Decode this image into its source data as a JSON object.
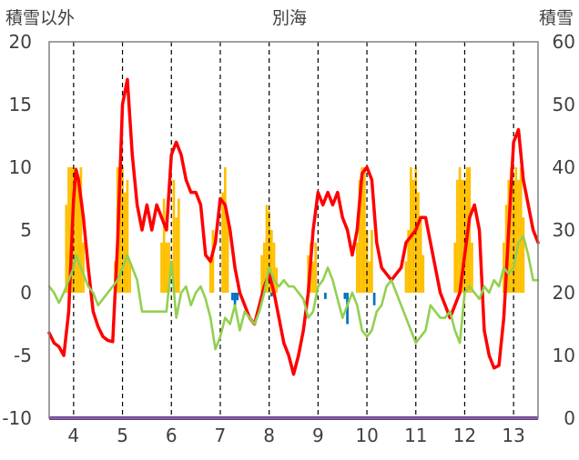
{
  "chart_data": {
    "type": "line",
    "title": "別海",
    "left_axis_label": "積雪以外",
    "right_axis_label": "積雪",
    "left_ylim": [
      -10,
      20
    ],
    "left_yticks": [
      20,
      15,
      10,
      5,
      0,
      -5,
      -10
    ],
    "right_ylim": [
      0,
      60
    ],
    "right_yticks": [
      60,
      50,
      40,
      30,
      20,
      10,
      0
    ],
    "xlim": [
      3.5,
      13.5
    ],
    "xticks": [
      4,
      5,
      6,
      7,
      8,
      9,
      10,
      11,
      12,
      13
    ],
    "grid": {
      "vertical": "dashed",
      "horizontal": "none"
    },
    "colors": {
      "red_line": "#ff0000",
      "green_line": "#92d050",
      "orange_bars": "#ffc000",
      "blue_bars": "#0070c0",
      "baseline": "#7030a0",
      "grid": "#000000",
      "frame": "#808080"
    },
    "series": [
      {
        "axis": "left",
        "style": "line",
        "color": "#ff0000",
        "x": [
          3.5,
          3.6,
          3.7,
          3.8,
          3.9,
          4.0,
          4.05,
          4.1,
          4.2,
          4.3,
          4.4,
          4.5,
          4.6,
          4.7,
          4.8,
          4.9,
          5.0,
          5.1,
          5.2,
          5.3,
          5.4,
          5.5,
          5.6,
          5.7,
          5.8,
          5.9,
          6.0,
          6.1,
          6.2,
          6.3,
          6.4,
          6.5,
          6.6,
          6.7,
          6.8,
          6.9,
          7.0,
          7.1,
          7.2,
          7.3,
          7.4,
          7.5,
          7.6,
          7.7,
          7.8,
          7.9,
          8.0,
          8.1,
          8.2,
          8.3,
          8.4,
          8.5,
          8.6,
          8.7,
          8.8,
          8.9,
          9.0,
          9.1,
          9.2,
          9.3,
          9.4,
          9.5,
          9.6,
          9.7,
          9.8,
          9.9,
          10.0,
          10.1,
          10.2,
          10.3,
          10.4,
          10.5,
          10.6,
          10.7,
          10.8,
          10.9,
          11.0,
          11.1,
          11.2,
          11.3,
          11.4,
          11.5,
          11.6,
          11.7,
          11.8,
          11.9,
          12.0,
          12.1,
          12.2,
          12.3,
          12.4,
          12.5,
          12.6,
          12.7,
          12.8,
          12.9,
          13.0,
          13.1,
          13.2,
          13.3,
          13.4,
          13.5
        ],
        "y": [
          -3.2,
          -4.0,
          -4.3,
          -5.0,
          -1.5,
          7.5,
          9.8,
          9.0,
          6.0,
          2.0,
          -1.5,
          -2.7,
          -3.5,
          -3.8,
          -3.9,
          4.0,
          15.0,
          17.0,
          11.0,
          7.0,
          5.0,
          7.0,
          5.0,
          7.0,
          6.0,
          5.0,
          11.0,
          12.0,
          11.0,
          9.0,
          8.0,
          8.0,
          7.0,
          3.0,
          2.5,
          4.0,
          7.5,
          7.0,
          5.0,
          2.0,
          0.0,
          -1.0,
          -2.0,
          -2.5,
          -1.0,
          0.5,
          1.5,
          0.0,
          -2.0,
          -4.0,
          -5.0,
          -6.5,
          -5.0,
          -3.0,
          0.0,
          5.0,
          8.0,
          7.0,
          8.0,
          7.0,
          8.0,
          6.0,
          5.0,
          3.0,
          5.0,
          9.5,
          10.0,
          9.0,
          4.0,
          2.0,
          1.5,
          1.0,
          1.5,
          2.0,
          4.0,
          4.5,
          5.0,
          6.0,
          6.0,
          4.0,
          2.0,
          0.0,
          -1.0,
          -2.0,
          -1.0,
          0.0,
          3.0,
          6.0,
          7.0,
          5.0,
          -3.0,
          -5.0,
          -6.0,
          -5.8,
          -2.0,
          5.0,
          12.0,
          13.0,
          9.0,
          7.0,
          5.0,
          4.0
        ]
      },
      {
        "axis": "left",
        "style": "line",
        "color": "#92d050",
        "x": [
          3.5,
          3.6,
          3.7,
          3.8,
          3.9,
          4.0,
          4.05,
          4.1,
          4.2,
          4.3,
          4.4,
          4.5,
          4.6,
          4.7,
          4.8,
          4.9,
          5.0,
          5.1,
          5.2,
          5.3,
          5.4,
          5.5,
          5.6,
          5.7,
          5.8,
          5.9,
          6.0,
          6.1,
          6.2,
          6.3,
          6.4,
          6.5,
          6.6,
          6.7,
          6.8,
          6.9,
          7.0,
          7.1,
          7.2,
          7.3,
          7.4,
          7.5,
          7.6,
          7.7,
          7.8,
          7.9,
          8.0,
          8.1,
          8.2,
          8.3,
          8.4,
          8.5,
          8.6,
          8.7,
          8.8,
          8.9,
          9.0,
          9.1,
          9.2,
          9.3,
          9.4,
          9.5,
          9.6,
          9.7,
          9.8,
          9.9,
          10.0,
          10.1,
          10.2,
          10.3,
          10.4,
          10.5,
          10.6,
          10.7,
          10.8,
          10.9,
          11.0,
          11.1,
          11.2,
          11.3,
          11.4,
          11.5,
          11.6,
          11.7,
          11.8,
          11.9,
          12.0,
          12.1,
          12.2,
          12.3,
          12.4,
          12.5,
          12.6,
          12.7,
          12.8,
          12.9,
          13.0,
          13.1,
          13.2,
          13.3,
          13.4,
          13.5
        ],
        "y": [
          0.5,
          0.0,
          -0.8,
          0.0,
          1.0,
          2.0,
          3.0,
          2.5,
          1.5,
          0.5,
          0.0,
          -1.0,
          -0.5,
          0.0,
          0.5,
          1.0,
          2.0,
          3.0,
          2.0,
          1.0,
          -1.5,
          -1.5,
          -1.5,
          -1.5,
          -1.5,
          -1.5,
          2.5,
          -2.0,
          0.0,
          0.5,
          -1.0,
          0.0,
          0.5,
          -0.5,
          -2.0,
          -4.5,
          -3.5,
          -2.0,
          -2.5,
          -1.0,
          -3.0,
          -1.5,
          -2.0,
          -2.5,
          -1.5,
          0.0,
          2.0,
          1.0,
          0.5,
          1.0,
          0.5,
          0.5,
          0.0,
          -0.5,
          -2.0,
          -1.5,
          0.5,
          1.0,
          2.0,
          1.0,
          -0.5,
          -2.0,
          -1.0,
          0.0,
          -1.0,
          -3.0,
          -3.5,
          -3.0,
          -1.5,
          -1.0,
          0.5,
          1.0,
          0.0,
          -1.0,
          -2.0,
          -3.0,
          -4.0,
          -3.5,
          -3.0,
          -1.0,
          -1.5,
          -2.0,
          -2.0,
          -1.5,
          -3.0,
          -4.0,
          0.0,
          0.5,
          0.0,
          -0.5,
          0.5,
          0.0,
          1.0,
          0.5,
          2.0,
          1.5,
          2.0,
          4.0,
          4.5,
          3.0,
          1.0,
          1.0
        ]
      },
      {
        "axis": "right",
        "style": "bar",
        "color": "#ffc000",
        "x": [
          3.85,
          3.9,
          3.95,
          4.0,
          4.05,
          4.1,
          4.15,
          4.2,
          4.85,
          4.9,
          4.95,
          5.0,
          5.05,
          5.1,
          5.15,
          5.8,
          5.85,
          5.9,
          5.95,
          6.05,
          6.1,
          6.15,
          6.8,
          6.85,
          7.05,
          7.1,
          7.15,
          7.85,
          7.9,
          7.95,
          8.0,
          8.05,
          8.1,
          8.15,
          8.8,
          8.85,
          8.9,
          8.95,
          9.8,
          9.85,
          9.9,
          9.95,
          10.0,
          10.05,
          10.1,
          10.8,
          10.85,
          10.9,
          10.95,
          11.0,
          11.05,
          11.1,
          11.15,
          11.8,
          11.85,
          11.9,
          11.95,
          12.0,
          12.05,
          12.1,
          12.15,
          12.8,
          12.85,
          12.9,
          12.95,
          13.0,
          13.05,
          13.1,
          13.15,
          13.2
        ],
        "y": [
          34,
          40,
          40,
          40,
          40,
          38,
          40,
          28,
          25,
          40,
          40,
          40,
          36,
          38,
          25,
          28,
          35,
          28,
          28,
          38,
          32,
          35,
          25,
          30,
          36,
          40,
          32,
          26,
          28,
          34,
          33,
          30,
          28,
          24,
          26,
          28,
          25,
          28,
          28,
          38,
          40,
          40,
          30,
          25,
          30,
          25,
          30,
          40,
          38,
          40,
          36,
          32,
          26,
          28,
          38,
          40,
          38,
          38,
          40,
          40,
          28,
          28,
          34,
          38,
          40,
          38,
          40,
          38,
          40,
          32
        ]
      },
      {
        "axis": "left",
        "style": "bar",
        "color": "#0070c0",
        "x": [
          7.25,
          7.3,
          7.35,
          8.05,
          9.15,
          9.55,
          9.6,
          10.15
        ],
        "y": [
          -0.6,
          -1.0,
          -0.6,
          -0.3,
          -0.5,
          -0.5,
          -2.5,
          -1.0
        ]
      }
    ]
  }
}
